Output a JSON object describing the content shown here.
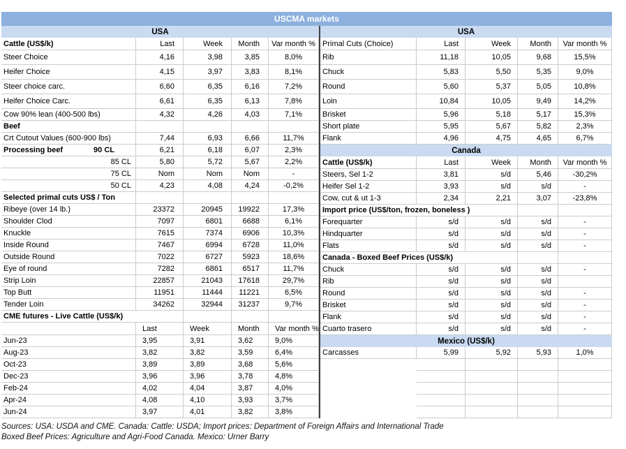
{
  "title": "USCMA markets",
  "colors": {
    "title_bg": "#8EB0DE",
    "band_bg": "#C9DAF1",
    "divider": "#3F3F3F",
    "grid": "#CBCBCB"
  },
  "left_table": {
    "rows": [
      {
        "t": "band",
        "label": "USA"
      },
      {
        "t": "hdr",
        "label": "Cattle (US$/k)",
        "bold": true,
        "cols": [
          "Last",
          "Week",
          "Month",
          "Var month %"
        ]
      },
      {
        "label": "Steer Choice",
        "v": [
          "4,16",
          "3,98",
          "3,85",
          "8,0%"
        ],
        "h": 1
      },
      {
        "label": "Heifer Choice",
        "v": [
          "4,15",
          "3,97",
          "3,83",
          "8,1%"
        ],
        "h": 1
      },
      {
        "label": "Steer choice carc.",
        "v": [
          "6,60",
          "6,35",
          "6,16",
          "7,2%"
        ],
        "h": 1
      },
      {
        "label": "Heifer Choice Carc.",
        "v": [
          "6,61",
          "6,35",
          "6,13",
          "7,8%"
        ],
        "h": 1
      },
      {
        "label": "Cow 90% lean (400-500 lbs)",
        "v": [
          "4,32",
          "4,26",
          "4,03",
          "7,1%"
        ]
      },
      {
        "label": "Beef",
        "bold": true,
        "v": [
          "",
          "",
          "",
          ""
        ]
      },
      {
        "label": "Crt Cutout Values (600-900 lbs)",
        "v": [
          "7,44",
          "6,93",
          "6,66",
          "11,7%"
        ]
      },
      {
        "label": "Processing beef",
        "label2": "90 CL",
        "bold": true,
        "v": [
          "6,21",
          "6,18",
          "6,07",
          "2,3%"
        ]
      },
      {
        "label": "85 CL",
        "la": "r",
        "v": [
          "5,80",
          "5,72",
          "5,67",
          "2,2%"
        ]
      },
      {
        "label": "75 CL",
        "la": "r",
        "v": [
          "Nom",
          "Nom",
          "Nom",
          "-"
        ]
      },
      {
        "label": "50 CL",
        "la": "r",
        "v": [
          "4,23",
          "4,08",
          "4,24",
          "-0,2%"
        ]
      },
      {
        "label": "Selected primal cuts US$ / Ton",
        "bold": true,
        "v": [
          "",
          "",
          "",
          ""
        ]
      },
      {
        "label": "Ribeye (over 14 lb.)",
        "v": [
          "23372",
          "20945",
          "19922",
          "17,3%"
        ]
      },
      {
        "label": "Shoulder Clod",
        "v": [
          "7097",
          "6801",
          "6688",
          "6,1%"
        ]
      },
      {
        "label": "Knuckle",
        "v": [
          "7615",
          "7374",
          "6906",
          "10,3%"
        ]
      },
      {
        "label": "Inside Round",
        "v": [
          "7467",
          "6994",
          "6728",
          "11,0%"
        ]
      },
      {
        "label": "Outside Round",
        "v": [
          "7022",
          "6727",
          "5923",
          "18,6%"
        ]
      },
      {
        "label": "Eye of round",
        "v": [
          "7282",
          "6861",
          "6517",
          "11,7%"
        ]
      },
      {
        "label": "Strip Loin",
        "v": [
          "22857",
          "21043",
          "17618",
          "29,7%"
        ]
      },
      {
        "label": "Top Butt",
        "v": [
          "11951",
          "11444",
          "11221",
          "6,5%"
        ]
      },
      {
        "label": "Tender Loin",
        "v": [
          "34262",
          "32944",
          "31237",
          "9,7%"
        ]
      },
      {
        "label": "CME futures - Live Cattle (US$/k)",
        "bold": true,
        "span": 2,
        "v": [
          "",
          "",
          "",
          ""
        ]
      },
      {
        "t": "hdr",
        "label": "",
        "cols": [
          "Last",
          "Week",
          "Month",
          "Var month %"
        ],
        "align": "left"
      },
      {
        "label": "Jun-23",
        "align": "left",
        "v": [
          "3,95",
          "3,91",
          "3,62",
          "9,0%"
        ]
      },
      {
        "label": "Aug-23",
        "align": "left",
        "v": [
          "3,82",
          "3,82",
          "3,59",
          "6,4%"
        ]
      },
      {
        "label": "Oct-23",
        "align": "left",
        "v": [
          "3,89",
          "3,89",
          "3,68",
          "5,6%"
        ]
      },
      {
        "label": "Dec-23",
        "align": "left",
        "v": [
          "3,96",
          "3,96",
          "3,78",
          "4,8%"
        ]
      },
      {
        "label": "Feb-24",
        "align": "left",
        "v": [
          "4,02",
          "4,04",
          "3,87",
          "4,0%"
        ]
      },
      {
        "label": "Apr-24",
        "align": "left",
        "v": [
          "4,08",
          "4,10",
          "3,93",
          "3,7%"
        ]
      },
      {
        "label": "Jun-24",
        "align": "left",
        "v": [
          "3,97",
          "4,01",
          "3,82",
          "3,8%"
        ]
      }
    ]
  },
  "right_table": {
    "rows": [
      {
        "t": "band",
        "label": "USA"
      },
      {
        "t": "hdr",
        "label": "Primal Cuts (Choice)",
        "bold": false,
        "cols": [
          "Last",
          "Week",
          "Month",
          "Var month %"
        ]
      },
      {
        "label": "Rib",
        "v": [
          "11,18",
          "10,05",
          "9,68",
          "15,5%"
        ],
        "h": 1
      },
      {
        "label": "Chuck",
        "v": [
          "5,83",
          "5,50",
          "5,35",
          "9,0%"
        ],
        "h": 1
      },
      {
        "label": "Round",
        "v": [
          "5,60",
          "5,37",
          "5,05",
          "10,8%"
        ],
        "h": 1
      },
      {
        "label": "Loin",
        "v": [
          "10,84",
          "10,05",
          "9,49",
          "14,2%"
        ],
        "h": 1
      },
      {
        "label": "Brisket",
        "v": [
          "5,96",
          "5,18",
          "5,17",
          "15,3%"
        ]
      },
      {
        "label": "Short plate",
        "v": [
          "5,95",
          "5,67",
          "5,82",
          "2,3%"
        ]
      },
      {
        "label": "Flank",
        "v": [
          "4,96",
          "4,75",
          "4,65",
          "6,7%"
        ]
      },
      {
        "t": "band",
        "label": "Canada"
      },
      {
        "t": "hdr",
        "label": "Cattle (US$/k)",
        "bold": true,
        "cols": [
          "Last",
          "Week",
          "Month",
          "Var month %"
        ]
      },
      {
        "label": "Steers, Sel 1-2",
        "v": [
          "3,81",
          "s/d",
          "5,46",
          "-30,2%"
        ]
      },
      {
        "label": "Heifer Sel 1-2",
        "v": [
          "3,93",
          "s/d",
          "s/d",
          "-"
        ]
      },
      {
        "label": "Cow, cut & ut 1-3",
        "v": [
          "2,34",
          "2,21",
          "3,07",
          "-23,8%"
        ]
      },
      {
        "label": "Import price (US$/ton, frozen, boneless )",
        "bold": true,
        "span": 3,
        "v": [
          "",
          "",
          "",
          ""
        ]
      },
      {
        "label": "Forequarter",
        "v": [
          "s/d",
          "s/d",
          "s/d",
          "-"
        ]
      },
      {
        "label": "Hindquarter",
        "v": [
          "s/d",
          "s/d",
          "s/d",
          "-"
        ]
      },
      {
        "label": "Flats",
        "v": [
          "s/d",
          "s/d",
          "s/d",
          "-"
        ]
      },
      {
        "label": "Canada - Boxed Beef Prices (US$/k)",
        "bold": true,
        "span": 3,
        "v": [
          "",
          "",
          "",
          ""
        ]
      },
      {
        "label": "Chuck",
        "v": [
          "s/d",
          "s/d",
          "s/d",
          "-"
        ]
      },
      {
        "label": "Rib",
        "v": [
          "s/d",
          "s/d",
          "s/d",
          ""
        ]
      },
      {
        "label": "Round",
        "v": [
          "s/d",
          "s/d",
          "s/d",
          "-"
        ]
      },
      {
        "label": "Brisket",
        "v": [
          "s/d",
          "s/d",
          "s/d",
          "-"
        ]
      },
      {
        "label": "Flank",
        "v": [
          "s/d",
          "s/d",
          "s/d",
          "-"
        ]
      },
      {
        "label": "Cuarto trasero",
        "v": [
          "s/d",
          "s/d",
          "s/d",
          "-"
        ]
      },
      {
        "t": "band",
        "label": "Mexico (US$/k)"
      },
      {
        "label": "Carcasses",
        "v": [
          "5,99",
          "5,92",
          "5,93",
          "1,0%"
        ]
      },
      {
        "t": "empty"
      },
      {
        "t": "empty"
      },
      {
        "t": "empty"
      },
      {
        "t": "empty"
      },
      {
        "t": "empty"
      }
    ]
  },
  "footer": {
    "line1": "Sources: USA: USDA and CME. Canada: Cattle: USDA; Import prices: Department of Foreign Affairs and International Trade",
    "line2": "Boxed Beef Prices: Agriculture and Agri-Food Canada. Mexico: Urner Barry"
  }
}
